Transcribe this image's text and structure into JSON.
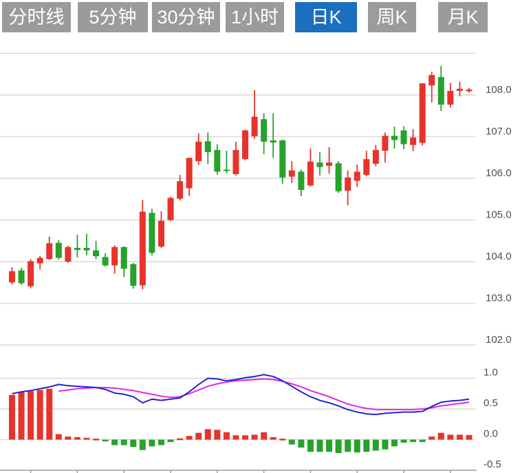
{
  "tabs": [
    {
      "label": "分时线",
      "active": false
    },
    {
      "label": "5分钟",
      "active": false
    },
    {
      "label": "30分钟",
      "active": false
    },
    {
      "label": "1小时",
      "active": false
    },
    {
      "label": "日K",
      "active": true
    },
    {
      "label": "周K",
      "active": false
    },
    {
      "label": "月K",
      "active": false
    }
  ],
  "chart_data": {
    "type": "candlestick",
    "title": "",
    "panels": [
      "price",
      "macd-indicator"
    ],
    "candle_format": "[open, high, low, close]",
    "price_axis": {
      "ticks": [
        "108.0",
        "107.0",
        "106.0",
        "105.0",
        "104.0",
        "103.0",
        "102.0"
      ],
      "range": [
        101.7,
        109.0
      ],
      "grid": true,
      "position": "right"
    },
    "indicator_axis": {
      "ticks": [
        "1.0",
        "0.5",
        "0.0",
        "-0.5"
      ],
      "range": [
        -0.55,
        1.15
      ],
      "grid": true,
      "position": "right"
    },
    "candles": [
      [
        103.5,
        103.87,
        103.45,
        103.77
      ],
      [
        103.79,
        103.85,
        103.44,
        103.48
      ],
      [
        103.41,
        104.06,
        103.36,
        104.01
      ],
      [
        103.96,
        104.14,
        103.81,
        104.09
      ],
      [
        104.06,
        104.6,
        104.04,
        104.44
      ],
      [
        104.45,
        104.52,
        104.05,
        104.09
      ],
      [
        104.0,
        104.38,
        103.97,
        104.35
      ],
      [
        104.33,
        104.65,
        104.1,
        104.28
      ],
      [
        104.33,
        104.67,
        104.15,
        104.27
      ],
      [
        104.27,
        104.5,
        104.06,
        104.13
      ],
      [
        104.11,
        104.2,
        103.88,
        103.91
      ],
      [
        103.91,
        104.39,
        103.71,
        104.35
      ],
      [
        104.35,
        104.37,
        103.63,
        103.83
      ],
      [
        103.94,
        103.97,
        103.35,
        103.42
      ],
      [
        103.43,
        105.48,
        103.33,
        105.2
      ],
      [
        105.17,
        105.27,
        104.15,
        104.21
      ],
      [
        104.36,
        105.21,
        104.33,
        104.98
      ],
      [
        105.0,
        105.56,
        104.97,
        105.53
      ],
      [
        105.51,
        106.08,
        105.47,
        105.93
      ],
      [
        105.76,
        106.5,
        105.58,
        106.49
      ],
      [
        106.41,
        107.08,
        106.32,
        106.88
      ],
      [
        106.89,
        107.1,
        106.34,
        106.63
      ],
      [
        106.68,
        106.82,
        106.09,
        106.16
      ],
      [
        106.21,
        106.66,
        106.12,
        106.18
      ],
      [
        106.1,
        106.88,
        106.07,
        106.68
      ],
      [
        106.46,
        107.17,
        106.43,
        107.15
      ],
      [
        107.01,
        108.12,
        106.95,
        107.48
      ],
      [
        107.42,
        107.56,
        106.58,
        106.88
      ],
      [
        106.91,
        107.56,
        106.49,
        106.86
      ],
      [
        106.91,
        106.93,
        105.87,
        106.02
      ],
      [
        106.04,
        106.41,
        105.89,
        106.19
      ],
      [
        106.16,
        106.21,
        105.57,
        105.72
      ],
      [
        105.83,
        106.72,
        105.8,
        106.4
      ],
      [
        106.38,
        106.63,
        106.07,
        106.27
      ],
      [
        106.3,
        106.75,
        106.11,
        106.38
      ],
      [
        106.36,
        106.41,
        105.65,
        105.69
      ],
      [
        105.7,
        106.19,
        105.35,
        106.02
      ],
      [
        105.94,
        106.33,
        105.8,
        106.16
      ],
      [
        106.08,
        106.66,
        106.05,
        106.46
      ],
      [
        106.35,
        106.8,
        106.29,
        106.68
      ],
      [
        106.66,
        107.1,
        106.38,
        107.02
      ],
      [
        107.02,
        107.24,
        106.71,
        106.92
      ],
      [
        107.15,
        107.25,
        106.7,
        106.82
      ],
      [
        106.8,
        107.18,
        106.65,
        106.98
      ],
      [
        106.85,
        108.28,
        106.79,
        108.28
      ],
      [
        108.23,
        108.56,
        107.82,
        108.48
      ],
      [
        108.43,
        108.7,
        107.62,
        107.77
      ],
      [
        107.77,
        108.29,
        107.7,
        108.1
      ],
      [
        108.1,
        108.32,
        107.97,
        108.15
      ],
      [
        108.09,
        108.17,
        108.06,
        108.13
      ]
    ],
    "macd": {
      "histogram": [
        0.73,
        0.78,
        0.79,
        0.81,
        0.83,
        0.09,
        0.05,
        0.04,
        0.03,
        0.015,
        -0.03,
        -0.09,
        -0.09,
        -0.12,
        -0.17,
        -0.11,
        -0.09,
        -0.04,
        0.02,
        0.06,
        0.11,
        0.17,
        0.16,
        0.12,
        0.07,
        0.07,
        0.08,
        0.12,
        0.04,
        0.015,
        -0.08,
        -0.13,
        -0.2,
        -0.2,
        -0.2,
        -0.22,
        -0.2,
        -0.21,
        -0.2,
        -0.18,
        -0.16,
        -0.11,
        -0.05,
        -0.04,
        -0.04,
        0.05,
        0.11,
        0.08,
        0.08,
        0.075
      ],
      "dif": [
        0.75,
        0.78,
        0.8,
        0.83,
        0.86,
        0.9,
        0.88,
        0.87,
        0.86,
        0.85,
        0.82,
        0.76,
        0.74,
        0.7,
        0.6,
        0.66,
        0.64,
        0.66,
        0.68,
        0.78,
        0.9,
        1.0,
        0.99,
        0.96,
        0.98,
        1.01,
        1.03,
        1.06,
        1.03,
        0.96,
        0.87,
        0.78,
        0.7,
        0.64,
        0.6,
        0.55,
        0.49,
        0.45,
        0.42,
        0.41,
        0.43,
        0.44,
        0.45,
        0.45,
        0.46,
        0.54,
        0.61,
        0.63,
        0.64,
        0.66
      ],
      "dea": [
        null,
        null,
        null,
        null,
        null,
        0.79,
        0.81,
        0.83,
        0.84,
        0.85,
        0.85,
        0.84,
        0.82,
        0.8,
        0.77,
        0.74,
        0.71,
        0.69,
        0.7,
        0.75,
        0.81,
        0.87,
        0.91,
        0.94,
        0.96,
        0.97,
        0.98,
        0.99,
        0.98,
        0.95,
        0.91,
        0.86,
        0.8,
        0.75,
        0.7,
        0.64,
        0.58,
        0.54,
        0.51,
        0.49,
        0.49,
        0.49,
        0.49,
        0.49,
        0.5,
        0.52,
        0.55,
        0.57,
        0.59,
        0.61
      ]
    },
    "x_tick_indices": [
      2,
      7,
      12,
      17,
      22,
      27,
      32,
      37,
      42,
      47
    ],
    "colors": {
      "up": "#e7332b",
      "down": "#27a22b",
      "dif_line": "#2323cb",
      "dea_line": "#e326e3",
      "grid": "#d9d9d9",
      "axis": "#9c9c9c",
      "label": "#4d4d4d",
      "tab_inactive": "#9b9b9b",
      "tab_active": "#1b6fbf",
      "tab_text": "#ffffff"
    }
  }
}
